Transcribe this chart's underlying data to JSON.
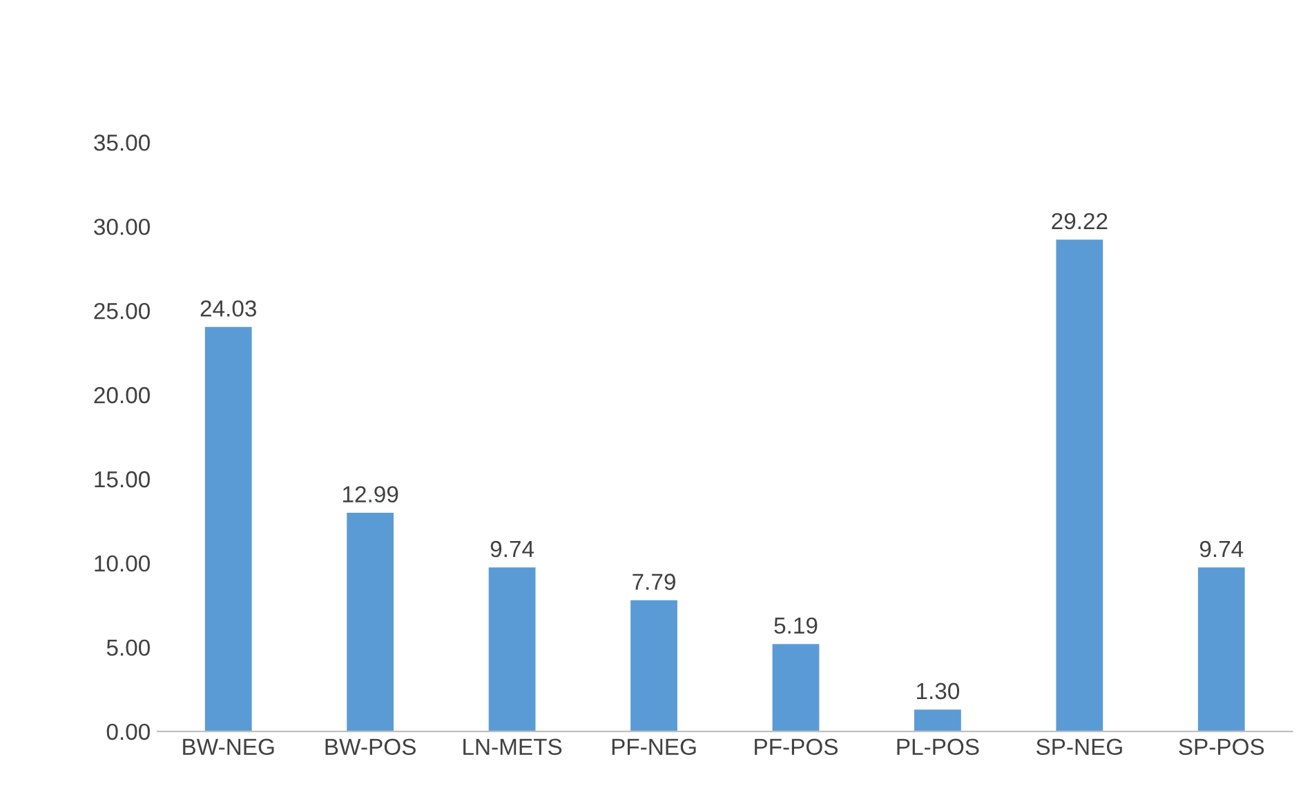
{
  "chart_data": {
    "type": "bar",
    "categories": [
      "BW-NEG",
      "BW-POS",
      "LN-METS",
      "PF-NEG",
      "PF-POS",
      "PL-POS",
      "SP-NEG",
      "SP-POS"
    ],
    "values": [
      24.03,
      12.99,
      9.74,
      7.79,
      5.19,
      1.3,
      29.22,
      9.74
    ],
    "value_labels": [
      "24.03",
      "12.99",
      "9.74",
      "7.79",
      "5.19",
      "1.30",
      "29.22",
      "9.74"
    ],
    "color": "#5b9bd5",
    "ylim": [
      0,
      35
    ],
    "yticks": [
      {
        "value": 0,
        "label": "0.00"
      },
      {
        "value": 5,
        "label": "5.00"
      },
      {
        "value": 10,
        "label": "10.00"
      },
      {
        "value": 15,
        "label": "15.00"
      },
      {
        "value": 20,
        "label": "20.00"
      },
      {
        "value": 25,
        "label": "25.00"
      },
      {
        "value": 30,
        "label": "30.00"
      },
      {
        "value": 35,
        "label": "35.00"
      }
    ],
    "grid": false
  }
}
